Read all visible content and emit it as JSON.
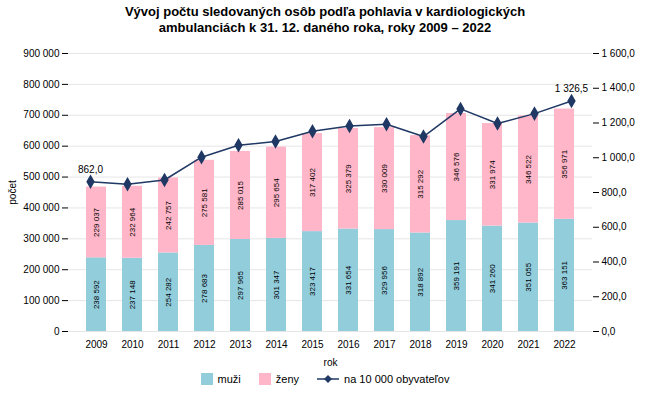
{
  "chart_data": {
    "type": "bar",
    "title": "Vývoj počtu sledovaných osôb podľa pohlavia v kardiologických\nambulanciách k 31. 12. daného roka, roky 2009 – 2022",
    "xlabel": "rok",
    "ylabel": "počet",
    "categories": [
      "2009",
      "2010",
      "2011",
      "2012",
      "2013",
      "2014",
      "2015",
      "2016",
      "2017",
      "2018",
      "2019",
      "2020",
      "2021",
      "2022"
    ],
    "series": [
      {
        "name": "muži",
        "type": "bar",
        "color": "#92CDDC",
        "values": [
          238592,
          237148,
          254282,
          278683,
          297965,
          301347,
          323417,
          331654,
          329956,
          318892,
          359191,
          341260,
          351055,
          363151
        ],
        "value_labels": [
          "238 592",
          "237 148",
          "254 282",
          "278 683",
          "297 965",
          "301 347",
          "323 417",
          "331 654",
          "329 956",
          "318 892",
          "359 191",
          "341 260",
          "351 055",
          "363 151"
        ]
      },
      {
        "name": "ženy",
        "type": "bar",
        "color": "#FFB6C8",
        "values": [
          229037,
          232964,
          242757,
          275581,
          285015,
          295654,
          317402,
          325379,
          330009,
          315292,
          346576,
          331974,
          346522,
          356971
        ],
        "value_labels": [
          "229 037",
          "232 964",
          "242 757",
          "275 581",
          "285 015",
          "295 654",
          "317 402",
          "325 379",
          "330 009",
          "315 292",
          "346 576",
          "331 974",
          "346 522",
          "356 971"
        ]
      },
      {
        "name": "na 10 000 obyvateľov",
        "type": "line",
        "axis": "y2",
        "color": "#1F3864",
        "marker": "diamond",
        "values": [
          862.0,
          848.0,
          872.0,
          1003.0,
          1072.0,
          1093.0,
          1152.0,
          1183.0,
          1193.0,
          1122.0,
          1281.0,
          1197.0,
          1254.0,
          1326.5
        ]
      }
    ],
    "annotations": [
      {
        "text": "862,0",
        "x": "2009",
        "y": 862.0,
        "axis": "y2"
      },
      {
        "text": "1 326,5",
        "x": "2022",
        "y": 1326.5,
        "axis": "y2"
      }
    ],
    "stacked": true,
    "data_labels": true,
    "grid": true,
    "legend": "bottom",
    "ylim": [
      0,
      900000
    ],
    "yticks": [
      0,
      {
        "value": 100000,
        "label": "100 000"
      },
      {
        "value": 200000,
        "label": "200 000"
      },
      {
        "value": 300000,
        "label": "300 000"
      },
      {
        "value": 400000,
        "label": "400 000"
      },
      {
        "value": 500000,
        "label": "500 000"
      },
      {
        "value": 600000,
        "label": "600 000"
      },
      {
        "value": 700000,
        "label": "700 000"
      },
      {
        "value": 800000,
        "label": "800 000"
      },
      {
        "value": 900000,
        "label": "900 000"
      }
    ],
    "y2lim": [
      0,
      1600
    ],
    "y2ticks": [
      {
        "value": 0,
        "label": "0,0"
      },
      {
        "value": 200,
        "label": "200,0"
      },
      {
        "value": 400,
        "label": "400,0"
      },
      {
        "value": 600,
        "label": "600,0"
      },
      {
        "value": 800,
        "label": "800,0"
      },
      {
        "value": 1000,
        "label": "1 000,0"
      },
      {
        "value": 1200,
        "label": "1 200,0"
      },
      {
        "value": 1400,
        "label": "1 400,0"
      },
      {
        "value": 1600,
        "label": "1 600,0"
      }
    ]
  }
}
